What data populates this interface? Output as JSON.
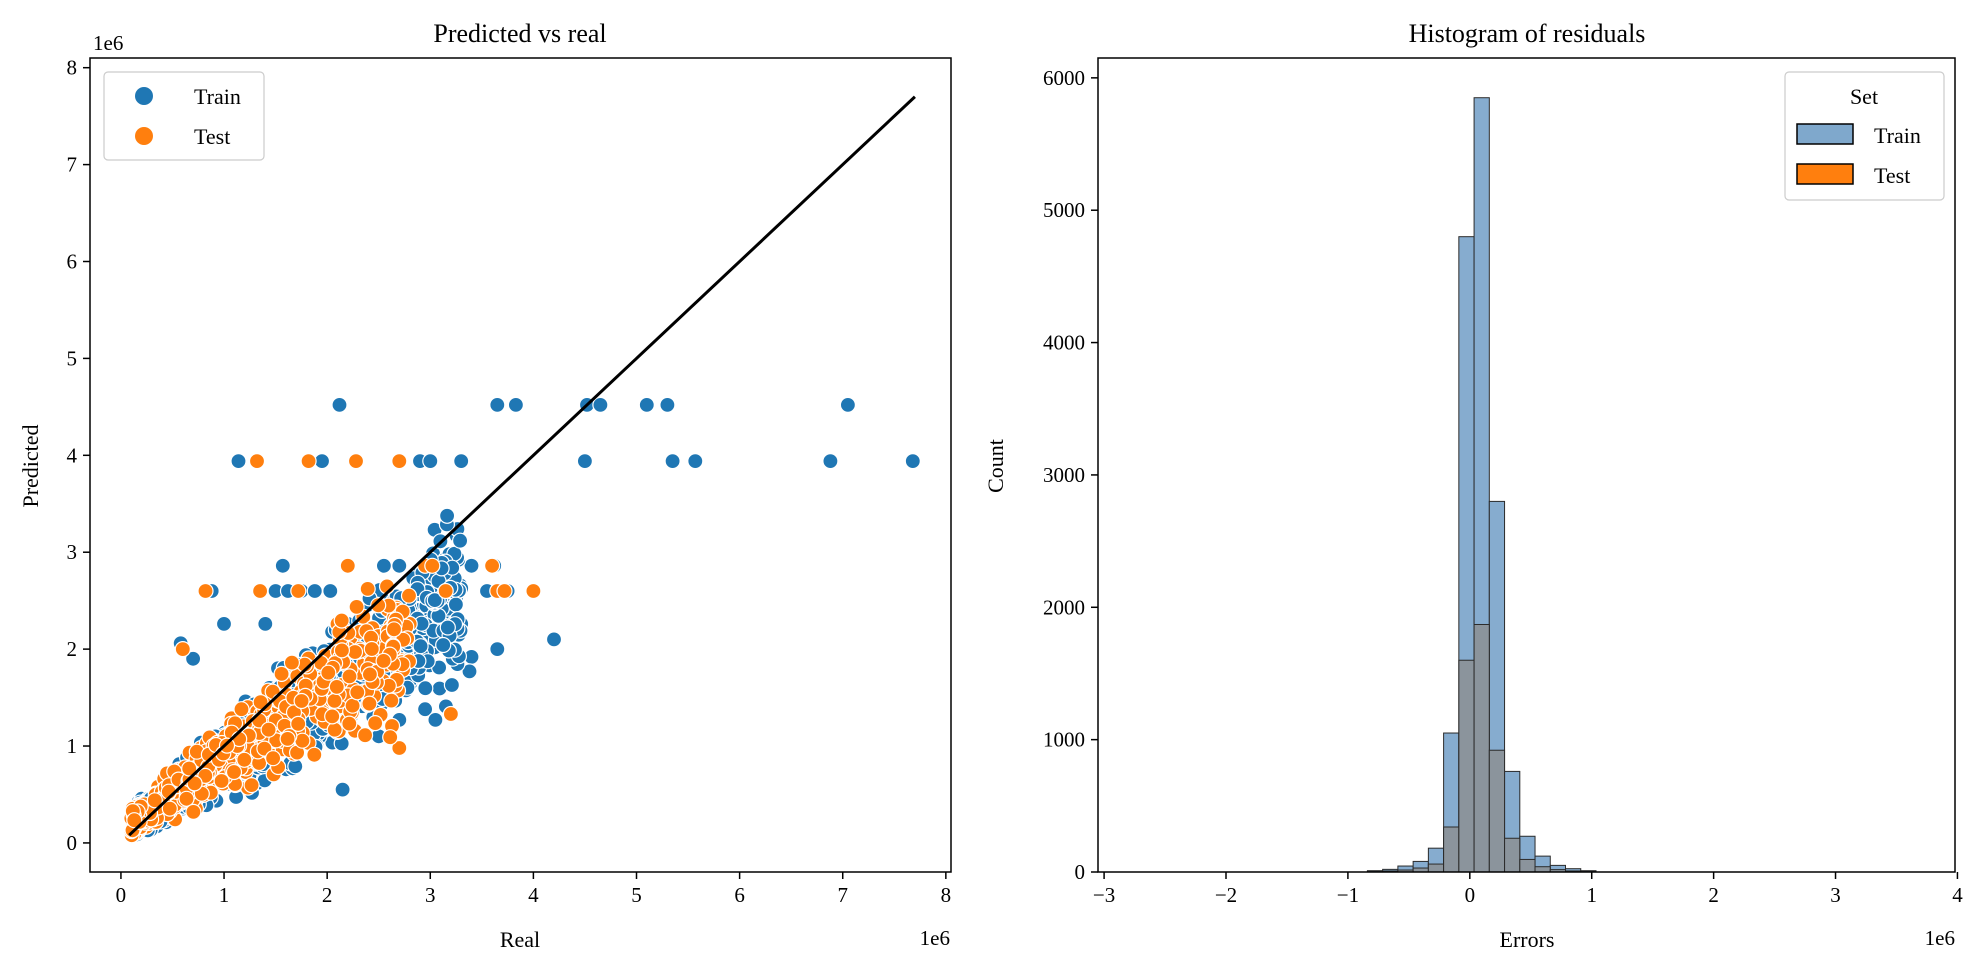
{
  "colors": {
    "train": "#1f77b4",
    "test": "#ff7f0e",
    "train_hist": "#7fa8cc",
    "test_hist": "#8c9196",
    "axis": "#000000"
  },
  "chart_data": [
    {
      "type": "scatter",
      "title": "Predicted vs real",
      "xlabel": "Real",
      "ylabel": "Predicted",
      "x_offset_label": "1e6",
      "y_offset_label": "1e6",
      "xlim": [
        -0.3,
        8.05
      ],
      "ylim": [
        -0.3,
        8.1
      ],
      "xticks": [
        0,
        1,
        2,
        3,
        4,
        5,
        6,
        7,
        8
      ],
      "yticks": [
        0,
        1,
        2,
        3,
        4,
        5,
        6,
        7,
        8
      ],
      "legend": {
        "location": "upper-left",
        "entries": [
          "Train",
          "Test"
        ]
      },
      "reference_line": {
        "x": [
          0.08,
          7.7
        ],
        "y": [
          0.08,
          7.7
        ]
      },
      "series": [
        {
          "name": "Train",
          "color_key": "train",
          "points": [
            [
              2.12,
              4.52
            ],
            [
              3.65,
              4.52
            ],
            [
              3.83,
              4.52
            ],
            [
              4.52,
              4.52
            ],
            [
              4.65,
              4.52
            ],
            [
              5.1,
              4.52
            ],
            [
              5.3,
              4.52
            ],
            [
              7.05,
              4.52
            ],
            [
              1.14,
              3.94
            ],
            [
              1.95,
              3.94
            ],
            [
              2.9,
              3.94
            ],
            [
              3.0,
              3.94
            ],
            [
              3.3,
              3.94
            ],
            [
              4.5,
              3.94
            ],
            [
              5.35,
              3.94
            ],
            [
              5.57,
              3.94
            ],
            [
              6.88,
              3.94
            ],
            [
              7.68,
              3.94
            ],
            [
              0.88,
              2.6
            ],
            [
              1.5,
              2.6
            ],
            [
              1.62,
              2.6
            ],
            [
              1.75,
              2.6
            ],
            [
              1.88,
              2.6
            ],
            [
              2.03,
              2.6
            ],
            [
              2.88,
              2.6
            ],
            [
              3.0,
              2.6
            ],
            [
              3.25,
              2.6
            ],
            [
              3.55,
              2.6
            ],
            [
              3.75,
              2.6
            ],
            [
              1.57,
              2.86
            ],
            [
              2.55,
              2.86
            ],
            [
              2.7,
              2.86
            ],
            [
              2.95,
              2.86
            ],
            [
              3.4,
              2.86
            ],
            [
              3.62,
              2.86
            ],
            [
              4.2,
              2.1
            ],
            [
              3.65,
              2.0
            ],
            [
              3.4,
              1.92
            ],
            [
              3.38,
              1.77
            ],
            [
              3.1,
              1.6
            ],
            [
              2.95,
              1.38
            ],
            [
              3.05,
              1.27
            ],
            [
              2.7,
              1.27
            ],
            [
              2.15,
              0.55
            ],
            [
              2.5,
              1.1
            ],
            [
              1.0,
              2.26
            ],
            [
              1.4,
              2.26
            ],
            [
              2.2,
              2.26
            ],
            [
              2.5,
              2.26
            ],
            [
              2.8,
              2.26
            ],
            [
              3.3,
              2.26
            ],
            [
              0.58,
              2.06
            ],
            [
              0.7,
              1.9
            ]
          ],
          "cluster": {
            "n": 1300,
            "xmin": 0.15,
            "xmax": 3.3,
            "seed": 7
          }
        },
        {
          "name": "Test",
          "color_key": "test",
          "points": [
            [
              1.32,
              3.94
            ],
            [
              1.82,
              3.94
            ],
            [
              2.28,
              3.94
            ],
            [
              2.7,
              3.94
            ],
            [
              0.82,
              2.6
            ],
            [
              1.35,
              2.6
            ],
            [
              1.72,
              2.6
            ],
            [
              2.2,
              2.86
            ],
            [
              2.95,
              2.86
            ],
            [
              3.02,
              2.86
            ],
            [
              3.6,
              2.86
            ],
            [
              3.15,
              2.6
            ],
            [
              3.65,
              2.6
            ],
            [
              3.72,
              2.6
            ],
            [
              4.0,
              2.6
            ],
            [
              2.7,
              0.98
            ],
            [
              3.2,
              1.33
            ],
            [
              2.1,
              2.26
            ],
            [
              2.8,
              2.26
            ],
            [
              0.6,
              2.0
            ]
          ],
          "cluster": {
            "n": 650,
            "xmin": 0.1,
            "xmax": 2.8,
            "seed": 13
          }
        }
      ]
    },
    {
      "type": "histogram",
      "title": "Histogram of residuals",
      "xlabel": "Errors",
      "ylabel": "Count",
      "x_offset_label": "1e6",
      "xlim": [
        -3.05,
        3.98
      ],
      "ylim": [
        0,
        6150
      ],
      "xticks": [
        -3,
        -2,
        -1,
        0,
        1,
        2,
        3,
        4
      ],
      "yticks": [
        0,
        1000,
        2000,
        3000,
        4000,
        5000,
        6000
      ],
      "legend": {
        "location": "upper-right",
        "title": "Set",
        "entries": [
          "Train",
          "Test"
        ]
      },
      "bin_edges": [
        -0.84,
        -0.715,
        -0.59,
        -0.465,
        -0.34,
        -0.215,
        -0.09,
        0.035,
        0.16,
        0.285,
        0.41,
        0.535,
        0.66,
        0.785,
        0.91,
        1.035
      ],
      "series": [
        {
          "name": "Train",
          "color_key": "train_hist",
          "counts": [
            10,
            20,
            45,
            80,
            180,
            1050,
            4800,
            5850,
            2800,
            760,
            270,
            120,
            50,
            25,
            10
          ]
        },
        {
          "name": "Test",
          "color_key": "test_hist",
          "counts": [
            3,
            8,
            15,
            30,
            60,
            340,
            1600,
            1870,
            920,
            255,
            95,
            40,
            18,
            8,
            3
          ]
        }
      ]
    }
  ]
}
